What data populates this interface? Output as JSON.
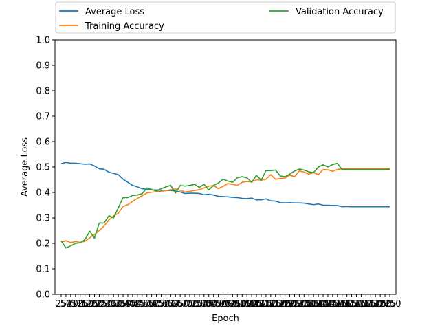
{
  "chart_data": {
    "type": "line",
    "title": "",
    "xlabel": "Epoch",
    "ylabel": "Average Loss",
    "ylim": [
      0.0,
      1.0
    ],
    "yticks": [
      "0.0",
      "0.1",
      "0.2",
      "0.3",
      "0.4",
      "0.5",
      "0.6",
      "0.7",
      "0.8",
      "0.9",
      "1.0"
    ],
    "xticks": [
      "25",
      "50",
      "75",
      "100",
      "125",
      "150",
      "175",
      "200",
      "225",
      "250",
      "275",
      "300",
      "325",
      "350",
      "375",
      "400",
      "425",
      "450",
      "475",
      "500",
      "525",
      "550",
      "575",
      "600",
      "625",
      "650",
      "675",
      "700",
      "725",
      "750",
      "775",
      "800",
      "825",
      "850",
      "875",
      "900",
      "925",
      "950",
      "975",
      "1000",
      "1025",
      "1050",
      "1075",
      "1100",
      "1125",
      "1150",
      "1175",
      "1200",
      "1225",
      "1250",
      "1275",
      "1300",
      "1325",
      "1350",
      "1375",
      "1400",
      "1425",
      "1450",
      "1475",
      "1500",
      "1525",
      "1550",
      "1575",
      "1600",
      "1625",
      "1650",
      "1675",
      "1700",
      "1725",
      "1750"
    ],
    "x": [
      25,
      50,
      75,
      100,
      125,
      150,
      175,
      200,
      225,
      250,
      275,
      300,
      325,
      350,
      375,
      400,
      425,
      450,
      475,
      500,
      525,
      550,
      575,
      600,
      625,
      650,
      675,
      700,
      725,
      750,
      775,
      800,
      825,
      850,
      875,
      900,
      925,
      950,
      975,
      1000,
      1025,
      1050,
      1075,
      1100,
      1125,
      1150,
      1175,
      1200,
      1225,
      1250,
      1275,
      1300,
      1325,
      1350,
      1375,
      1400,
      1425,
      1450,
      1475,
      1500,
      1525,
      1550,
      1575,
      1600,
      1625,
      1650,
      1675,
      1700,
      1725,
      1750
    ],
    "legend_position": "above-plot",
    "grid": false,
    "series": [
      {
        "name": "Average Loss",
        "color": "#1f77b4",
        "values": [
          0.513,
          0.518,
          0.515,
          0.515,
          0.513,
          0.511,
          0.512,
          0.504,
          0.493,
          0.491,
          0.48,
          0.475,
          0.47,
          0.452,
          0.44,
          0.428,
          0.422,
          0.415,
          0.412,
          0.41,
          0.41,
          0.409,
          0.408,
          0.408,
          0.406,
          0.402,
          0.396,
          0.397,
          0.397,
          0.396,
          0.391,
          0.393,
          0.39,
          0.385,
          0.384,
          0.383,
          0.381,
          0.38,
          0.377,
          0.376,
          0.378,
          0.371,
          0.371,
          0.375,
          0.367,
          0.366,
          0.36,
          0.359,
          0.36,
          0.359,
          0.359,
          0.358,
          0.355,
          0.352,
          0.355,
          0.35,
          0.35,
          0.349,
          0.349,
          0.344,
          0.345,
          0.344,
          0.344,
          0.344,
          0.344,
          0.344,
          0.344,
          0.344,
          0.344,
          0.344
        ]
      },
      {
        "name": "Training Accuracy",
        "color": "#ff7f0e",
        "values": [
          0.205,
          0.21,
          0.203,
          0.207,
          0.204,
          0.208,
          0.222,
          0.235,
          0.25,
          0.268,
          0.292,
          0.308,
          0.318,
          0.345,
          0.352,
          0.365,
          0.377,
          0.387,
          0.398,
          0.401,
          0.403,
          0.405,
          0.407,
          0.411,
          0.414,
          0.408,
          0.402,
          0.404,
          0.408,
          0.411,
          0.418,
          0.425,
          0.427,
          0.415,
          0.424,
          0.435,
          0.432,
          0.428,
          0.44,
          0.443,
          0.442,
          0.45,
          0.448,
          0.452,
          0.47,
          0.452,
          0.455,
          0.457,
          0.468,
          0.462,
          0.485,
          0.48,
          0.472,
          0.478,
          0.47,
          0.49,
          0.489,
          0.483,
          0.49,
          0.493,
          0.493,
          0.493,
          0.493,
          0.493,
          0.493,
          0.493,
          0.493,
          0.493,
          0.493,
          0.493
        ]
      },
      {
        "name": "Validation Accuracy",
        "color": "#2ca02c",
        "values": [
          0.21,
          0.182,
          0.19,
          0.2,
          0.202,
          0.215,
          0.248,
          0.22,
          0.28,
          0.28,
          0.308,
          0.3,
          0.34,
          0.38,
          0.38,
          0.388,
          0.39,
          0.395,
          0.418,
          0.412,
          0.405,
          0.415,
          0.422,
          0.428,
          0.398,
          0.428,
          0.425,
          0.428,
          0.432,
          0.42,
          0.432,
          0.41,
          0.428,
          0.437,
          0.452,
          0.445,
          0.44,
          0.458,
          0.462,
          0.458,
          0.44,
          0.467,
          0.448,
          0.486,
          0.486,
          0.488,
          0.465,
          0.462,
          0.472,
          0.484,
          0.492,
          0.488,
          0.481,
          0.478,
          0.5,
          0.509,
          0.5,
          0.51,
          0.514,
          0.49,
          0.49,
          0.49,
          0.49,
          0.49,
          0.49,
          0.49,
          0.49,
          0.49,
          0.49,
          0.49
        ]
      }
    ]
  }
}
